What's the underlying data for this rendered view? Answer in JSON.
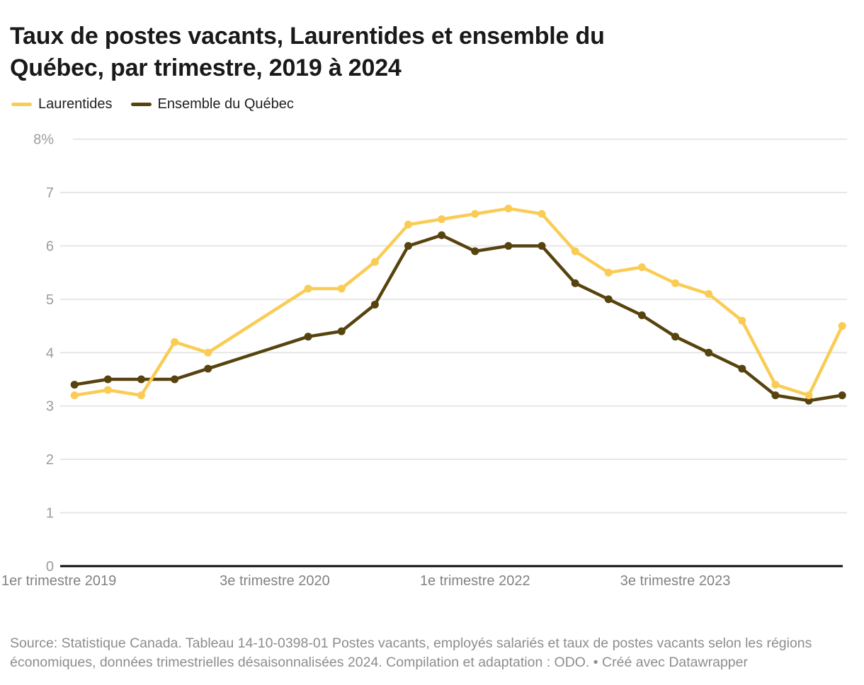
{
  "header": {
    "title_lines": [
      "Taux de postes vacants, Laurentides et ensemble du",
      "Québec, par trimestre, 2019 à 2024"
    ]
  },
  "chart_data": {
    "type": "line",
    "title": "Taux de postes vacants, Laurentides et ensemble du Québec, par trimestre, 2019 à 2024",
    "xlabel": "",
    "ylabel": "",
    "unit": "%",
    "ylim": [
      0,
      8
    ],
    "grid": true,
    "legend_position": "top-left",
    "x": [
      "T1 2019",
      "T2 2019",
      "T3 2019",
      "T4 2019",
      "T1 2020",
      "T2 2020",
      "T3 2020",
      "T4 2020",
      "T1 2021",
      "T2 2021",
      "T3 2021",
      "T4 2021",
      "T1 2022",
      "T2 2022",
      "T3 2022",
      "T4 2022",
      "T1 2023",
      "T2 2023",
      "T3 2023",
      "T4 2023",
      "T1 2024",
      "T2 2024",
      "T3 2024",
      "T4 2024"
    ],
    "series": [
      {
        "name": "Laurentides",
        "color": "#FACC54",
        "values": [
          3.2,
          3.3,
          3.2,
          4.2,
          4.0,
          null,
          null,
          5.2,
          5.2,
          5.7,
          6.4,
          6.5,
          6.6,
          6.7,
          6.6,
          5.9,
          5.5,
          5.6,
          5.3,
          5.1,
          4.6,
          3.4,
          3.2,
          4.5
        ]
      },
      {
        "name": "Ensemble du Québec",
        "color": "#57430E",
        "values": [
          3.4,
          3.5,
          3.5,
          3.5,
          3.7,
          null,
          null,
          4.3,
          4.4,
          4.9,
          6.0,
          6.2,
          5.9,
          6.0,
          6.0,
          5.3,
          5.0,
          4.7,
          4.3,
          4.0,
          3.7,
          3.2,
          3.1,
          3.2
        ]
      }
    ],
    "missing_points": [
      "T2 2020",
      "T3 2020"
    ],
    "y_ticks": [
      {
        "value": 8,
        "label": "8%"
      },
      {
        "value": 7,
        "label": "7"
      },
      {
        "value": 6,
        "label": "6"
      },
      {
        "value": 5,
        "label": "5"
      },
      {
        "value": 4,
        "label": "4"
      },
      {
        "value": 3,
        "label": "3"
      },
      {
        "value": 2,
        "label": "2"
      },
      {
        "value": 1,
        "label": "1"
      },
      {
        "value": 0,
        "label": "0"
      }
    ],
    "x_ticks": [
      {
        "index": 0,
        "label": "1er trimestre 2019"
      },
      {
        "index": 6,
        "label": "3e trimestre 2020"
      },
      {
        "index": 12,
        "label": "1e trimestre 2022"
      },
      {
        "index": 18,
        "label": "3e trimestre 2023"
      }
    ]
  },
  "footer": {
    "source": "Source: Statistique Canada. Tableau 14-10-0398-01 Postes vacants, employés salariés et taux de postes vacants selon les régions économiques, données trimestrielles désaisonnalisées 2024. Compilation et adaptation : ODO. • Créé avec Datawrapper"
  }
}
